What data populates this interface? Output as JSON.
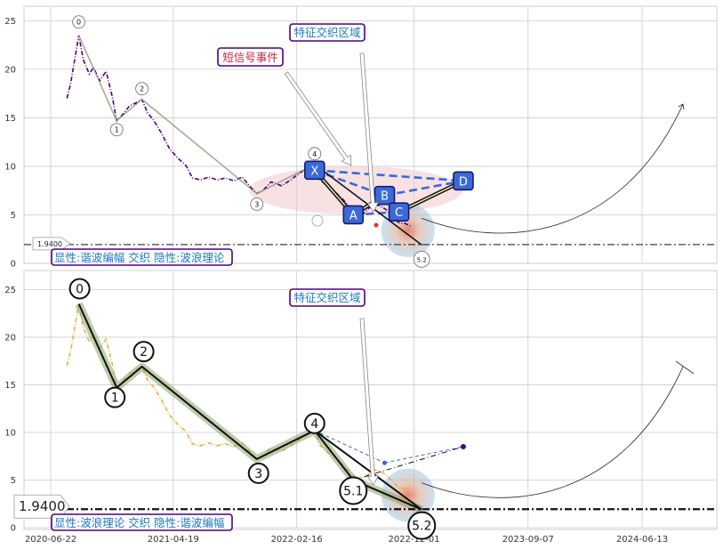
{
  "chart_data": [
    {
      "type": "line",
      "panel": "top",
      "ylim": [
        0,
        26.5
      ],
      "y_ticks": [
        0,
        5,
        10,
        15,
        20,
        25
      ],
      "grid": true,
      "series": [
        {
          "role": "price",
          "color": "#4b0082",
          "style": "dashed",
          "values": [
            [
              "2020-08-01",
              17.0
            ],
            [
              "2020-08-10",
              18.5
            ],
            [
              "2020-08-20",
              21.0
            ],
            [
              "2020-08-30",
              23.5
            ],
            [
              "2020-09-10",
              21.0
            ],
            [
              "2020-09-25",
              19.5
            ],
            [
              "2020-10-05",
              20.2
            ],
            [
              "2020-10-20",
              18.8
            ],
            [
              "2020-11-05",
              19.8
            ],
            [
              "2020-11-20",
              17.2
            ],
            [
              "2020-12-01",
              14.7
            ],
            [
              "2020-12-15",
              15.3
            ],
            [
              "2021-01-01",
              16.2
            ],
            [
              "2021-01-20",
              16.6
            ],
            [
              "2021-02-01",
              16.9
            ],
            [
              "2021-02-15",
              15.5
            ],
            [
              "2021-03-01",
              14.8
            ],
            [
              "2021-03-20",
              13.5
            ],
            [
              "2021-04-10",
              11.8
            ],
            [
              "2021-05-01",
              10.8
            ],
            [
              "2021-05-20",
              10.1
            ],
            [
              "2021-06-05",
              8.8
            ],
            [
              "2021-06-25",
              8.6
            ],
            [
              "2021-07-15",
              8.9
            ],
            [
              "2021-08-05",
              8.6
            ],
            [
              "2021-08-25",
              8.8
            ],
            [
              "2021-09-15",
              8.5
            ],
            [
              "2021-10-05",
              8.9
            ],
            [
              "2021-10-25",
              7.9
            ],
            [
              "2021-11-10",
              7.2
            ],
            [
              "2021-11-25",
              7.5
            ],
            [
              "2021-12-15",
              8.4
            ],
            [
              "2022-01-10",
              8.0
            ],
            [
              "2022-02-01",
              8.6
            ],
            [
              "2022-02-20",
              9.2
            ],
            [
              "2022-03-05",
              9.6
            ],
            [
              "2022-03-20",
              9.9
            ],
            [
              "2022-04-01",
              10.2
            ],
            [
              "2022-04-15",
              8.6
            ],
            [
              "2022-05-01",
              8.0
            ],
            [
              "2022-05-20",
              7.4
            ],
            [
              "2022-06-05",
              6.8
            ],
            [
              "2022-06-25",
              5.9
            ],
            [
              "2022-07-10",
              5.3
            ],
            [
              "2022-07-25",
              4.9
            ],
            [
              "2022-08-10",
              5.6
            ],
            [
              "2022-08-25",
              6.1
            ],
            [
              "2022-09-10",
              5.9
            ],
            [
              "2022-09-25",
              5.5
            ],
            [
              "2022-10-10",
              4.8
            ],
            [
              "2022-10-25",
              4.2
            ],
            [
              "2022-11-10",
              4.1
            ],
            [
              "2022-11-25",
              3.8
            ]
          ]
        }
      ],
      "wave_points": [
        {
          "label": "0",
          "date": "2020-08-30",
          "value": 23.5
        },
        {
          "label": "1",
          "date": "2020-12-01",
          "value": 14.7
        },
        {
          "label": "2",
          "date": "2021-02-01",
          "value": 16.9
        },
        {
          "label": "3",
          "date": "2021-11-10",
          "value": 7.2
        },
        {
          "label": "4",
          "date": "2022-04-01",
          "value": 10.2
        },
        {
          "label": "5.2",
          "date": "2022-12-20",
          "value": 1.9
        }
      ],
      "harmonic_points": [
        {
          "label": "X",
          "date": "2022-04-01",
          "value": 9.6
        },
        {
          "label": "A",
          "date": "2022-07-05",
          "value": 5.0
        },
        {
          "label": "B",
          "date": "2022-09-20",
          "value": 7.0
        },
        {
          "label": "C",
          "date": "2022-10-25",
          "value": 5.3
        },
        {
          "label": "D",
          "date": "2023-04-01",
          "value": 8.5
        }
      ],
      "reference_line": {
        "value": 1.94,
        "label": "1.9400"
      },
      "annotations": [
        "特征交织区域",
        "短信号事件"
      ],
      "footer_label": "显性:谐波编幅 交织 隐性:波浪理论"
    },
    {
      "type": "line",
      "panel": "bottom",
      "ylim": [
        0,
        27
      ],
      "y_ticks": [
        0,
        5,
        10,
        15,
        20,
        25
      ],
      "grid": true,
      "x_ticks": [
        "2020-06-22",
        "2021-04-19",
        "2022-02-16",
        "2022-12-01",
        "2023-09-07",
        "2024-06-13"
      ],
      "series": [
        {
          "role": "price",
          "color": "#e8b040",
          "style": "dashed",
          "values": [
            [
              "2020-08-01",
              17.0
            ],
            [
              "2020-08-10",
              18.5
            ],
            [
              "2020-08-20",
              21.0
            ],
            [
              "2020-08-30",
              23.5
            ],
            [
              "2020-09-10",
              21.0
            ],
            [
              "2020-09-25",
              19.5
            ],
            [
              "2020-10-05",
              20.2
            ],
            [
              "2020-10-20",
              18.8
            ],
            [
              "2020-11-05",
              19.8
            ],
            [
              "2020-11-20",
              17.2
            ],
            [
              "2020-12-01",
              14.7
            ],
            [
              "2020-12-15",
              15.3
            ],
            [
              "2021-01-01",
              16.2
            ],
            [
              "2021-01-20",
              16.6
            ],
            [
              "2021-02-01",
              16.9
            ],
            [
              "2021-02-15",
              15.5
            ],
            [
              "2021-03-01",
              14.8
            ],
            [
              "2021-03-20",
              13.5
            ],
            [
              "2021-04-10",
              11.8
            ],
            [
              "2021-05-01",
              10.8
            ],
            [
              "2021-05-20",
              10.1
            ],
            [
              "2021-06-05",
              8.8
            ],
            [
              "2021-06-25",
              8.6
            ],
            [
              "2021-07-15",
              8.9
            ],
            [
              "2021-08-05",
              8.6
            ],
            [
              "2021-08-25",
              8.8
            ],
            [
              "2021-09-15",
              8.5
            ],
            [
              "2021-10-05",
              8.9
            ],
            [
              "2021-10-25",
              7.9
            ],
            [
              "2021-11-10",
              7.2
            ],
            [
              "2021-11-25",
              7.5
            ],
            [
              "2021-12-15",
              8.4
            ],
            [
              "2022-01-10",
              8.0
            ],
            [
              "2022-02-01",
              8.6
            ],
            [
              "2022-02-20",
              9.2
            ],
            [
              "2022-03-05",
              9.6
            ],
            [
              "2022-03-20",
              9.9
            ],
            [
              "2022-04-01",
              10.2
            ],
            [
              "2022-04-15",
              8.6
            ],
            [
              "2022-05-01",
              8.0
            ],
            [
              "2022-05-20",
              7.4
            ],
            [
              "2022-06-05",
              6.8
            ],
            [
              "2022-06-25",
              5.9
            ],
            [
              "2022-07-10",
              5.3
            ],
            [
              "2022-07-25",
              4.9
            ],
            [
              "2022-08-10",
              5.6
            ],
            [
              "2022-08-25",
              6.1
            ],
            [
              "2022-09-10",
              5.9
            ],
            [
              "2022-09-25",
              5.5
            ],
            [
              "2022-10-10",
              4.8
            ],
            [
              "2022-10-25",
              4.2
            ],
            [
              "2022-11-10",
              4.1
            ],
            [
              "2022-11-25",
              3.8
            ]
          ]
        }
      ],
      "wave_points": [
        {
          "label": "0",
          "date": "2020-08-30",
          "value": 23.5
        },
        {
          "label": "1",
          "date": "2020-12-01",
          "value": 14.7
        },
        {
          "label": "2",
          "date": "2021-02-01",
          "value": 16.9
        },
        {
          "label": "3",
          "date": "2021-11-10",
          "value": 7.2
        },
        {
          "label": "4",
          "date": "2022-04-01",
          "value": 10.2
        },
        {
          "label": "5.1",
          "date": "2022-07-05",
          "value": 5.0
        },
        {
          "label": "5.2",
          "date": "2022-12-20",
          "value": 1.9
        }
      ],
      "harmonic_points": [
        {
          "date": "2022-09-20",
          "value": 6.8
        },
        {
          "date": "2023-04-01",
          "value": 8.5
        }
      ],
      "reference_line": {
        "value": 1.94,
        "label": "1.9400"
      },
      "annotations": [
        "特征交织区域"
      ],
      "footer_label": "显性:波浪理论 交织 隐性:谐波编幅"
    }
  ]
}
